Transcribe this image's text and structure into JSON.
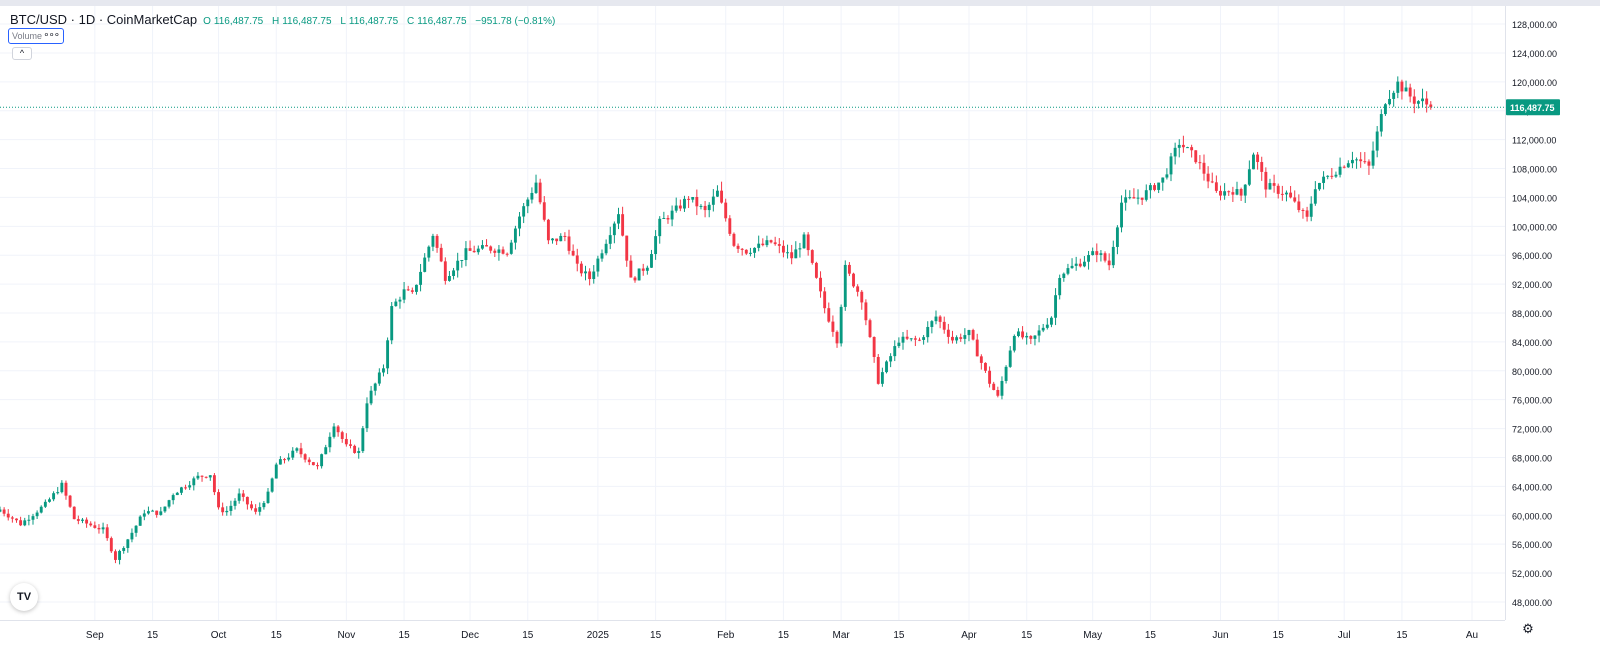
{
  "legend": {
    "title": "BTC/USD · 1D · CoinMarketCap",
    "open_key": "O",
    "open_val": "116,487.75",
    "high_key": "H",
    "high_val": "116,487.75",
    "low_key": "L",
    "low_val": "116,487.75",
    "close_key": "C",
    "close_val": "116,487.75",
    "change": "−951.78 (−0.81%)"
  },
  "volume_label": "Volume",
  "volume_menu": "∘∘∘",
  "collapse_glyph": "^",
  "logo_text": "TV",
  "colors": {
    "up": "#089981",
    "down": "#f23645",
    "grid": "#f0f3fa",
    "axis_text": "#131722"
  },
  "icons": {
    "settings": "gear-icon",
    "collapse": "chevron-up-icon",
    "logo": "tradingview-logo-icon"
  },
  "chart_data": {
    "type": "candlestick",
    "title": "BTC/USD · 1D · CoinMarketCap",
    "y_ticks": [
      48000,
      52000,
      56000,
      60000,
      64000,
      68000,
      72000,
      76000,
      80000,
      84000,
      88000,
      92000,
      96000,
      100000,
      104000,
      108000,
      112000,
      116000,
      120000,
      124000,
      128000
    ],
    "y_tick_labels": [
      "48,000.00",
      "52,000.00",
      "56,000.00",
      "60,000.00",
      "64,000.00",
      "68,000.00",
      "72,000.00",
      "76,000.00",
      "80,000.00",
      "84,000.00",
      "88,000.00",
      "92,000.00",
      "96,000.00",
      "100,000.00",
      "104,000.00",
      "108,000.00",
      "112,000.00",
      "116,000.00",
      "120,000.00",
      "124,000.00",
      "128,000.00"
    ],
    "ylim": [
      45500,
      130500
    ],
    "x_ticks": [
      {
        "date": "2024-09-01",
        "label": "Sep"
      },
      {
        "date": "2024-09-15",
        "label": "15"
      },
      {
        "date": "2024-10-01",
        "label": "Oct"
      },
      {
        "date": "2024-10-15",
        "label": "15"
      },
      {
        "date": "2024-11-01",
        "label": "Nov"
      },
      {
        "date": "2024-11-15",
        "label": "15"
      },
      {
        "date": "2024-12-01",
        "label": "Dec"
      },
      {
        "date": "2024-12-15",
        "label": "15"
      },
      {
        "date": "2025-01-01",
        "label": "2025"
      },
      {
        "date": "2025-01-15",
        "label": "15"
      },
      {
        "date": "2025-02-01",
        "label": "Feb"
      },
      {
        "date": "2025-02-15",
        "label": "15"
      },
      {
        "date": "2025-03-01",
        "label": "Mar"
      },
      {
        "date": "2025-03-15",
        "label": "15"
      },
      {
        "date": "2025-04-01",
        "label": "Apr"
      },
      {
        "date": "2025-04-15",
        "label": "15"
      },
      {
        "date": "2025-05-01",
        "label": "May"
      },
      {
        "date": "2025-05-15",
        "label": "15"
      },
      {
        "date": "2025-06-01",
        "label": "Jun"
      },
      {
        "date": "2025-06-15",
        "label": "15"
      },
      {
        "date": "2025-07-01",
        "label": "Jul"
      },
      {
        "date": "2025-07-15",
        "label": "15"
      },
      {
        "date": "2025-08-01",
        "label": "Au"
      }
    ],
    "x_range": [
      "2024-08-09",
      "2025-08-09"
    ],
    "last_price": 116487.75,
    "last_price_label": "116,487.75",
    "anchors": [
      [
        "2024-08-09",
        60800
      ],
      [
        "2024-08-14",
        58800
      ],
      [
        "2024-08-20",
        61500
      ],
      [
        "2024-08-24",
        64200
      ],
      [
        "2024-08-27",
        59500
      ],
      [
        "2024-09-03",
        58000
      ],
      [
        "2024-09-06",
        54000
      ],
      [
        "2024-09-10",
        57600
      ],
      [
        "2024-09-13",
        60500
      ],
      [
        "2024-09-17",
        60300
      ],
      [
        "2024-09-20",
        63000
      ],
      [
        "2024-09-26",
        65300
      ],
      [
        "2024-09-29",
        65700
      ],
      [
        "2024-10-01",
        60800
      ],
      [
        "2024-10-03",
        60600
      ],
      [
        "2024-10-06",
        62800
      ],
      [
        "2024-10-10",
        60300
      ],
      [
        "2024-10-13",
        62900
      ],
      [
        "2024-10-15",
        67000
      ],
      [
        "2024-10-20",
        69000
      ],
      [
        "2024-10-25",
        66600
      ],
      [
        "2024-10-29",
        72700
      ],
      [
        "2024-11-01",
        69500
      ],
      [
        "2024-11-04",
        68700
      ],
      [
        "2024-11-06",
        75800
      ],
      [
        "2024-11-10",
        80500
      ],
      [
        "2024-11-12",
        88700
      ],
      [
        "2024-11-15",
        91000
      ],
      [
        "2024-11-17",
        90500
      ],
      [
        "2024-11-22",
        98900
      ],
      [
        "2024-11-25",
        93000
      ],
      [
        "2024-11-30",
        96400
      ],
      [
        "2024-12-05",
        97000
      ],
      [
        "2024-12-10",
        96600
      ],
      [
        "2024-12-13",
        101400
      ],
      [
        "2024-12-17",
        106100
      ],
      [
        "2024-12-20",
        97800
      ],
      [
        "2024-12-24",
        98600
      ],
      [
        "2024-12-27",
        94300
      ],
      [
        "2024-12-30",
        92800
      ],
      [
        "2025-01-06",
        102000
      ],
      [
        "2025-01-09",
        92500
      ],
      [
        "2025-01-13",
        94700
      ],
      [
        "2025-01-16",
        100500
      ],
      [
        "2025-01-20",
        102300
      ],
      [
        "2025-01-23",
        104000
      ],
      [
        "2025-01-27",
        102000
      ],
      [
        "2025-01-30",
        104700
      ],
      [
        "2025-02-03",
        97600
      ],
      [
        "2025-02-06",
        96600
      ],
      [
        "2025-02-12",
        97800
      ],
      [
        "2025-02-17",
        95700
      ],
      [
        "2025-02-20",
        98300
      ],
      [
        "2025-02-25",
        88700
      ],
      [
        "2025-02-28",
        84300
      ],
      [
        "2025-03-02",
        94200
      ],
      [
        "2025-03-06",
        90000
      ],
      [
        "2025-03-10",
        78600
      ],
      [
        "2025-03-15",
        84300
      ],
      [
        "2025-03-20",
        84200
      ],
      [
        "2025-03-24",
        87500
      ],
      [
        "2025-03-28",
        84300
      ],
      [
        "2025-04-01",
        85200
      ],
      [
        "2025-04-06",
        78400
      ],
      [
        "2025-04-08",
        76300
      ],
      [
        "2025-04-12",
        85300
      ],
      [
        "2025-04-16",
        84000
      ],
      [
        "2025-04-21",
        87500
      ],
      [
        "2025-04-23",
        93400
      ],
      [
        "2025-04-28",
        95000
      ],
      [
        "2025-05-02",
        96500
      ],
      [
        "2025-05-05",
        94700
      ],
      [
        "2025-05-08",
        103300
      ],
      [
        "2025-05-13",
        104200
      ],
      [
        "2025-05-18",
        106500
      ],
      [
        "2025-05-22",
        111600
      ],
      [
        "2025-05-26",
        109400
      ],
      [
        "2025-05-31",
        104600
      ],
      [
        "2025-06-04",
        105000
      ],
      [
        "2025-06-06",
        104300
      ],
      [
        "2025-06-09",
        110200
      ],
      [
        "2025-06-12",
        105600
      ],
      [
        "2025-06-17",
        104500
      ],
      [
        "2025-06-22",
        101000
      ],
      [
        "2025-06-24",
        105600
      ],
      [
        "2025-06-28",
        107300
      ],
      [
        "2025-07-03",
        109600
      ],
      [
        "2025-07-07",
        108200
      ],
      [
        "2025-07-11",
        117500
      ],
      [
        "2025-07-14",
        119800
      ],
      [
        "2025-07-18",
        117400
      ],
      [
        "2025-07-20",
        117300
      ],
      [
        "2025-07-22",
        116487.75
      ]
    ]
  }
}
